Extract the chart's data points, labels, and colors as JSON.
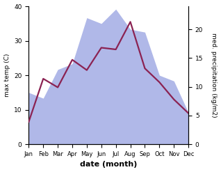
{
  "months": [
    "Jan",
    "Feb",
    "Mar",
    "Apr",
    "May",
    "Jun",
    "Jul",
    "Aug",
    "Sep",
    "Oct",
    "Nov",
    "Dec"
  ],
  "temp_max": [
    6.5,
    19.0,
    16.5,
    24.5,
    21.5,
    28.0,
    27.5,
    35.5,
    22.0,
    18.0,
    13.0,
    9.0
  ],
  "precipitation": [
    9.0,
    8.0,
    13.0,
    14.0,
    22.0,
    21.0,
    23.5,
    20.0,
    19.5,
    12.0,
    11.0,
    5.5
  ],
  "temp_color": "#8B2252",
  "precip_fill_color": "#b0b8e8",
  "xlabel": "date (month)",
  "ylabel_left": "max temp (C)",
  "ylabel_right": "med. precipitation (kg/m2)",
  "ylim_left": [
    0,
    40
  ],
  "ylim_right": [
    0,
    24
  ],
  "yticks_left": [
    0,
    10,
    20,
    30,
    40
  ],
  "yticks_right": [
    0,
    5,
    10,
    15,
    20
  ],
  "background_color": "#ffffff",
  "line_width": 1.6
}
